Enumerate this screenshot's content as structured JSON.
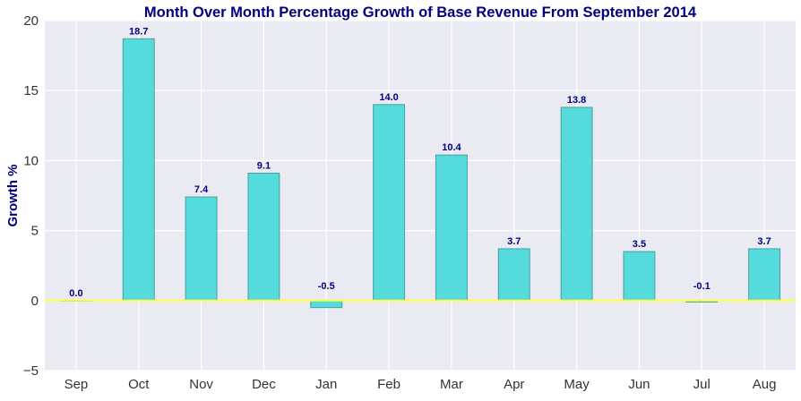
{
  "chart_data": {
    "type": "bar",
    "title": "Month Over Month Percentage Growth of Base Revenue From September 2014",
    "xlabel": "",
    "ylabel": "Growth %",
    "categories": [
      "Sep",
      "Oct",
      "Nov",
      "Dec",
      "Jan",
      "Feb",
      "Mar",
      "Apr",
      "May",
      "Jun",
      "Jul",
      "Aug"
    ],
    "values": [
      0.0,
      18.7,
      7.4,
      9.1,
      -0.5,
      14.0,
      10.4,
      3.7,
      13.8,
      3.5,
      -0.1,
      3.7
    ],
    "data_labels": [
      "0.0",
      "18.7",
      "7.4",
      "9.1",
      "-0.5",
      "14.0",
      "10.4",
      "3.7",
      "13.8",
      "3.5",
      "-0.1",
      "3.7"
    ],
    "ylim": [
      -5,
      20
    ],
    "yticks": [
      -5,
      0,
      5,
      10,
      15,
      20
    ],
    "ytick_labels": [
      "−5",
      "0",
      "5",
      "10",
      "15",
      "20"
    ],
    "grid": true,
    "legend": "none",
    "zero_line": true,
    "colors": {
      "bar_fill": "#55dbdc",
      "bar_edge": "#4a9ea0",
      "plot_bg": "#eaeaf2",
      "grid": "#ffffff",
      "zero_line": "#ffff33",
      "title": "#000080",
      "ylabel": "#000080",
      "data_label": "#000080",
      "tick_label": "#333333"
    }
  }
}
